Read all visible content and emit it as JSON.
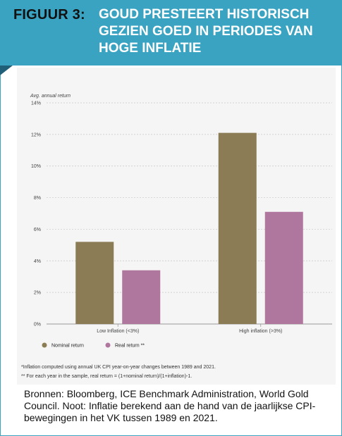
{
  "header": {
    "figure_label": "FIGUUR 3:",
    "title": "GOUD PRESTEERT HISTORISCH GEZIEN GOED IN PERIODES VAN HOGE INFLATIE"
  },
  "colors": {
    "header_bg": "#3aa3c2",
    "nominal": "#8c7c55",
    "real": "#b0779e"
  },
  "chart_data": {
    "type": "bar",
    "ylabel": "Avg. annual return",
    "ylim": [
      0,
      14
    ],
    "yticks": [
      "0%",
      "2%",
      "4%",
      "6%",
      "8%",
      "10%",
      "12%",
      "14%"
    ],
    "ytick_values": [
      0,
      2,
      4,
      6,
      8,
      10,
      12,
      14
    ],
    "categories": [
      "Low Inflation (<3%)",
      "High inflation (>3%)"
    ],
    "series": [
      {
        "name": "Nominal return",
        "values": [
          5.2,
          12.1
        ]
      },
      {
        "name": "Real return **",
        "values": [
          3.4,
          7.1
        ]
      }
    ],
    "grid": true,
    "legend": "bottom-left"
  },
  "notes": {
    "note1": "*Inflation computed using annual UK CPI year-on-year changes between 1989 and 2021.",
    "note2": "** For each year in the sample, real return = (1+nominal return)/(1+inflation)-1."
  },
  "source": "Bronnen: Bloomberg, ICE Benchmark Administration, World Gold Council. Noot: Inflatie berekend aan de hand van de jaarlijkse CPI-bewegingen in het VK tussen 1989 en 2021."
}
